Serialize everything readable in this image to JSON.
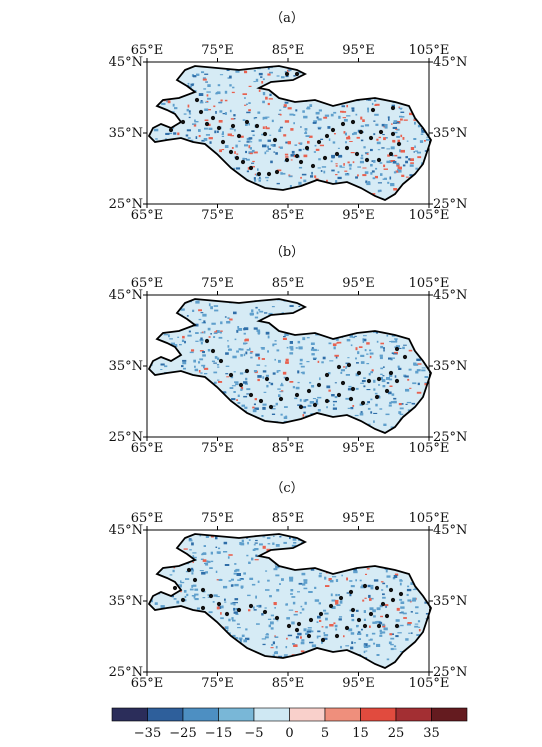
{
  "panels": [
    {
      "id": "a",
      "label": "（a）"
    },
    {
      "id": "b",
      "label": "（b）"
    },
    {
      "id": "c",
      "label": "（c）"
    }
  ],
  "axes": {
    "lon_ticks": [
      "65°E",
      "75°E",
      "85°E",
      "95°E",
      "105°E"
    ],
    "lat_ticks": [
      "45°N",
      "35°N",
      "25°N"
    ]
  },
  "colorbar": {
    "colors": [
      "#2b2d5a",
      "#2e5f9b",
      "#4d8fc2",
      "#79b7d7",
      "#cfe8f3",
      "#f9d0cb",
      "#ef8f7c",
      "#e14b3e",
      "#a32f33",
      "#641b1f"
    ],
    "tick_labels": [
      "-35",
      "-25",
      "-15",
      "-5",
      "0",
      "5",
      "15",
      "25",
      "35"
    ]
  },
  "legend_colors": {
    "land_base": "#d6ebf5",
    "blue": "#5f9fcc",
    "dark_blue": "#2f6ea8",
    "red": "#e8604f",
    "station": "#111111"
  }
}
